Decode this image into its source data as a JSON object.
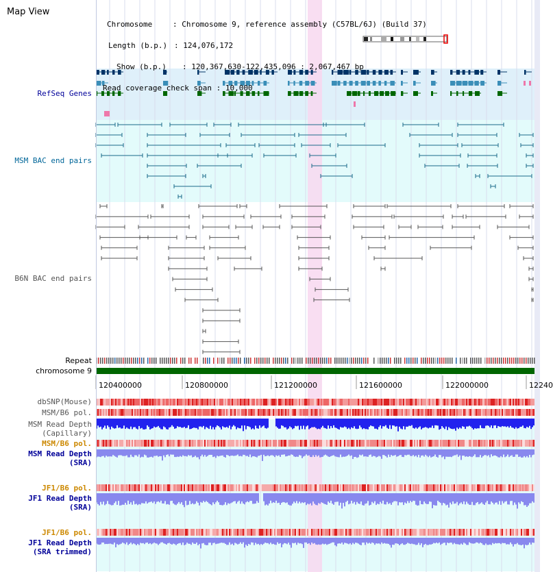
{
  "view_title": "Map View",
  "info": {
    "chromosome_label": "Chromosome",
    "chromosome_value": "Chromosome 9, reference assembly (C57BL/6J) (Build 37)",
    "length_label": "Length (b.p.)",
    "length_value": "124,076,172",
    "show_label": "Show (b.p.)",
    "show_value": "120,367,630-122,435,096 : 2,067,467 bp",
    "span_label": "Read coverage check span",
    "span_value": "10,000"
  },
  "tracks": {
    "refseq": "RefSeq Genes",
    "msm_bac": "MSM BAC end pairs",
    "b6n_bac": "B6N BAC end pairs",
    "repeat": "Repeat",
    "chromosome": "chromosome 9",
    "dbsnp": "dbSNP(Mouse)",
    "msm_b6_pol_1": "MSM/B6 pol.",
    "msm_depth_cap_1": "MSM Read Depth",
    "msm_depth_cap_2": "(Capillary)",
    "msm_b6_pol_2": "MSM/B6 pol.",
    "msm_depth_sra_1": "MSM Read Depth",
    "msm_depth_sra_2": "(SRA)",
    "jf1_b6_pol_1": "JF1/B6 pol.",
    "jf1_depth_sra_1": "JF1 Read Depth",
    "jf1_depth_sra_2": "(SRA)",
    "jf1_b6_pol_2": "JF1/B6 pol.",
    "jf1_depth_trim_1": "JF1 Read Depth",
    "jf1_depth_trim_2": "(SRA trimmed)"
  },
  "ruler": {
    "ticks": [
      "120400000",
      "120800000",
      "121200000",
      "121600000",
      "122000000",
      "12240"
    ]
  },
  "colors": {
    "refseq_bg": "#dff0fa",
    "msm_bg": "#e3fbfb",
    "highlight": "#f8d8f0",
    "gene_dark": "#003366",
    "gene_mid": "#3a8eb8",
    "gene_green": "#006600",
    "msm_line": "#1a6a8a",
    "b6n_line": "#555555",
    "chromosome": "#006600",
    "label_blue": "#000099",
    "label_orange": "#cc8800",
    "label_msm": "#006699",
    "label_b6n": "#555555",
    "depth_blue": "#2222ee",
    "depth_lilac": "#8888ee",
    "snp_red": "#ee5555"
  }
}
